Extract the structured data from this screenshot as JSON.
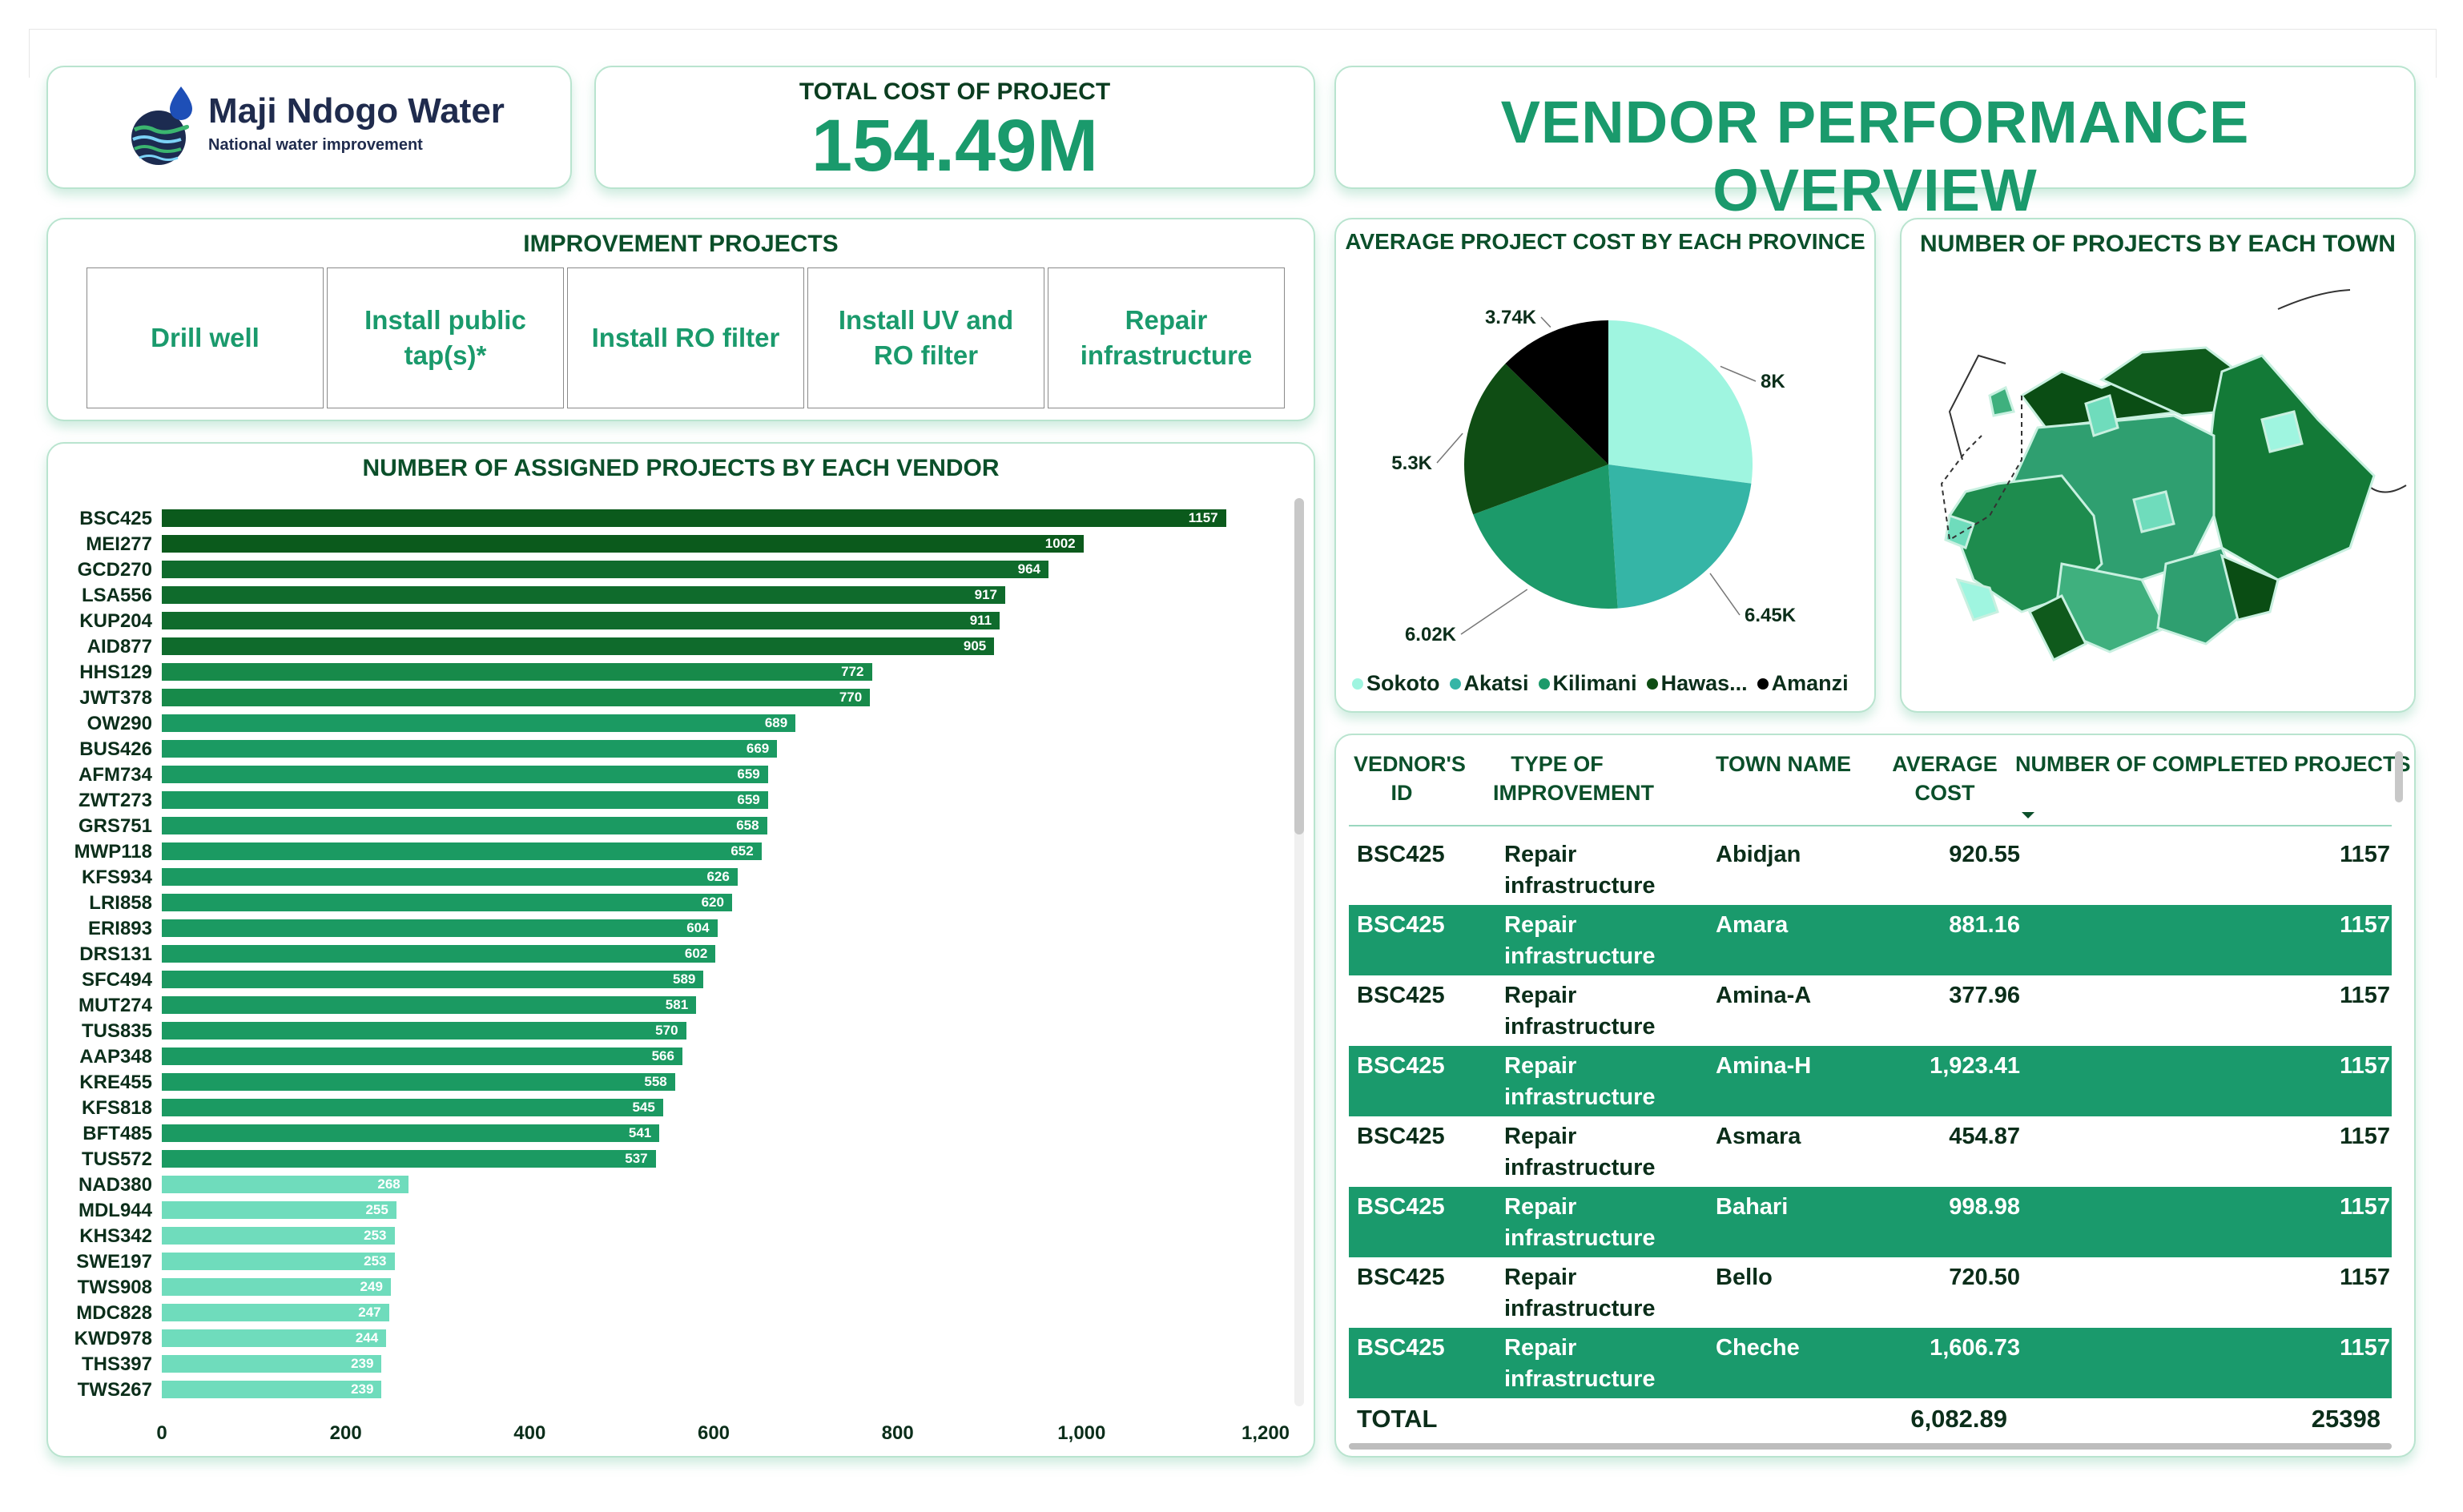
{
  "logo": {
    "title": "Maji Ndogo Water",
    "subtitle": "National water improvement"
  },
  "kpi": {
    "label": "TOTAL COST OF PROJECT",
    "value": "154.49M"
  },
  "headline": "VENDOR PERFORMANCE OVERVIEW",
  "improvement": {
    "title": "IMPROVEMENT PROJECTS",
    "options": [
      "Drill well",
      "Install public tap(s)*",
      "Install RO filter",
      "Install UV and RO filter",
      "Repair infrastructure"
    ]
  },
  "bar_title": "NUMBER OF ASSIGNED PROJECTS BY EACH VENDOR",
  "pie_title": "AVERAGE PROJECT COST BY EACH PROVINCE",
  "map_title": "NUMBER OF PROJECTS BY EACH TOWN",
  "colors": {
    "accent": "#1a9a6c",
    "dark": "#0b5a32",
    "light": "#6fdcbc",
    "aqua": "#9ff5e0",
    "teal": "#35b5a6",
    "darkest": "#0d4a14",
    "black": "#000000"
  },
  "chart_data": [
    {
      "type": "bar",
      "orientation": "horizontal",
      "title": "NUMBER OF ASSIGNED PROJECTS BY EACH VENDOR",
      "categories": [
        "BSC425",
        "MEI277",
        "GCD270",
        "LSA556",
        "KUP204",
        "AID877",
        "HHS129",
        "JWT378",
        "OW290",
        "BUS426",
        "AFM734",
        "ZWT273",
        "GRS751",
        "MWP118",
        "KFS934",
        "LRI858",
        "ERI893",
        "DRS131",
        "SFC494",
        "MUT274",
        "TUS835",
        "AAP348",
        "KRE455",
        "KFS818",
        "BFT485",
        "TUS572",
        "NAD380",
        "MDL944",
        "KHS342",
        "SWE197",
        "TWS908",
        "MDC828",
        "KWD978",
        "THS397",
        "TWS267"
      ],
      "values": [
        1157,
        1002,
        964,
        917,
        911,
        905,
        772,
        770,
        689,
        669,
        659,
        659,
        658,
        652,
        626,
        620,
        604,
        602,
        589,
        581,
        570,
        566,
        558,
        545,
        541,
        537,
        268,
        255,
        253,
        253,
        249,
        247,
        244,
        239,
        239
      ],
      "xlim": [
        0,
        1200
      ],
      "xticks": [
        "0",
        "200",
        "400",
        "600",
        "800",
        "1,000",
        "1,200"
      ]
    },
    {
      "type": "pie",
      "title": "AVERAGE PROJECT COST BY EACH PROVINCE",
      "labels": [
        "Sokoto",
        "Akatsi",
        "Kilimani",
        "Hawas...",
        "Amanzi"
      ],
      "values": [
        8000,
        6450,
        6020,
        5300,
        3740
      ],
      "value_labels": [
        "8K",
        "6.45K",
        "6.02K",
        "5.3K",
        "3.74K"
      ],
      "colors": [
        "#9ff5e0",
        "#35b5a6",
        "#1c9a6a",
        "#0f4d14",
        "#000000"
      ]
    }
  ],
  "table": {
    "headers": [
      "VEDNOR'S ID",
      "TYPE OF IMPROVEMENT",
      "TOWN NAME",
      "AVERAGE COST",
      "NUMBER OF COMPLETED PROJECTS"
    ],
    "rows": [
      {
        "id": "BSC425",
        "type": "Repair infrastructure",
        "town": "Abidjan",
        "avg": "920.55",
        "count": "1157"
      },
      {
        "id": "BSC425",
        "type": "Repair infrastructure",
        "town": "Amara",
        "avg": "881.16",
        "count": "1157"
      },
      {
        "id": "BSC425",
        "type": "Repair infrastructure",
        "town": "Amina-A",
        "avg": "377.96",
        "count": "1157"
      },
      {
        "id": "BSC425",
        "type": "Repair infrastructure",
        "town": "Amina-H",
        "avg": "1,923.41",
        "count": "1157"
      },
      {
        "id": "BSC425",
        "type": "Repair infrastructure",
        "town": "Asmara",
        "avg": "454.87",
        "count": "1157"
      },
      {
        "id": "BSC425",
        "type": "Repair infrastructure",
        "town": "Bahari",
        "avg": "998.98",
        "count": "1157"
      },
      {
        "id": "BSC425",
        "type": "Repair infrastructure",
        "town": "Bello",
        "avg": "720.50",
        "count": "1157"
      },
      {
        "id": "BSC425",
        "type": "Repair infrastructure",
        "town": "Cheche",
        "avg": "1,606.73",
        "count": "1157"
      }
    ],
    "total": {
      "label": "TOTAL",
      "avg": "6,082.89",
      "count": "25398"
    }
  }
}
